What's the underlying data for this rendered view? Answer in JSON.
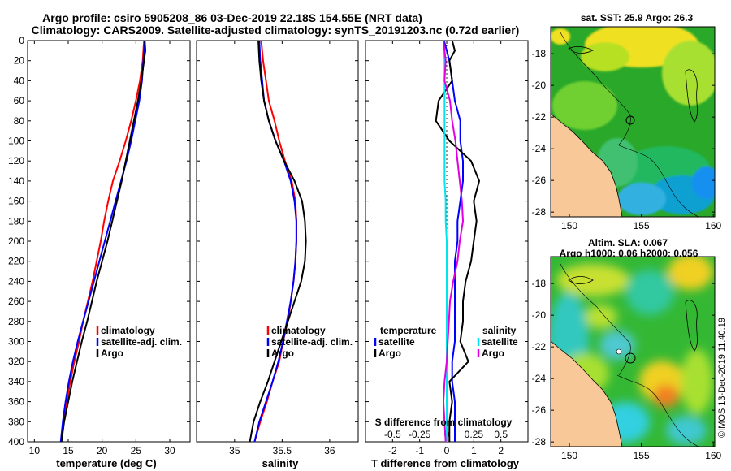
{
  "header": {
    "title_line1": "Argo profile: csiro 5905208_86 03-Dec-2019 22.18S 154.55E (NRT data)",
    "title_line2": "Climatology: CARS2009. Satellite-adjusted climatology: synTS_20191203.nc (0.72d earlier)"
  },
  "colors": {
    "climatology": "#ff0000",
    "satellite": "#0000ff",
    "argo": "#000000",
    "salinity_satellite": "#00e5f0",
    "salinity_argo": "#e000e0",
    "land": "#f8c898"
  },
  "chart_data": [
    {
      "type": "line",
      "id": "temperature-profile",
      "xlabel": "temperature (deg C)",
      "ylabel": "",
      "xlim": [
        9,
        33
      ],
      "ylim": [
        400,
        0
      ],
      "xticks": [
        "10",
        "15",
        "20",
        "25",
        "30"
      ],
      "yticks": [
        "0",
        "20",
        "40",
        "60",
        "80",
        "100",
        "120",
        "140",
        "160",
        "180",
        "200",
        "220",
        "240",
        "260",
        "280",
        "300",
        "320",
        "340",
        "360",
        "380",
        "400"
      ],
      "legend": [
        "climatology",
        "satellite-adj. clim.",
        "Argo"
      ],
      "legend_position": "lower-right",
      "series": [
        {
          "name": "climatology",
          "depth": [
            0,
            20,
            40,
            60,
            80,
            100,
            120,
            140,
            160,
            180,
            200,
            220,
            240,
            260,
            280,
            300,
            320,
            340,
            360,
            380,
            400
          ],
          "values": [
            26.2,
            26.0,
            25.6,
            25.0,
            24.3,
            23.5,
            22.6,
            21.6,
            20.9,
            20.3,
            19.8,
            19.2,
            18.6,
            17.9,
            17.2,
            16.6,
            15.9,
            15.3,
            14.8,
            14.3,
            13.9
          ]
        },
        {
          "name": "satellite-adj. clim.",
          "depth": [
            0,
            20,
            40,
            60,
            80,
            100,
            120,
            140,
            160,
            180,
            200,
            220,
            240,
            260,
            280,
            300,
            320,
            340,
            360,
            380,
            400
          ],
          "values": [
            26.3,
            26.1,
            25.9,
            25.5,
            24.9,
            24.3,
            23.6,
            22.8,
            22.0,
            21.2,
            20.4,
            19.6,
            18.8,
            18.0,
            17.2,
            16.4,
            15.7,
            15.1,
            14.6,
            14.2,
            13.9
          ]
        },
        {
          "name": "Argo",
          "depth": [
            0,
            10,
            20,
            40,
            60,
            80,
            100,
            120,
            140,
            160,
            180,
            200,
            220,
            240,
            260,
            280,
            300,
            320,
            340,
            360,
            380,
            400
          ],
          "values": [
            26.3,
            26.4,
            26.2,
            25.8,
            25.3,
            24.7,
            24.1,
            23.5,
            22.9,
            22.2,
            21.5,
            20.8,
            20.0,
            19.2,
            18.5,
            17.8,
            17.0,
            16.3,
            15.6,
            15.0,
            14.4,
            14.0
          ]
        }
      ]
    },
    {
      "type": "line",
      "id": "salinity-profile",
      "xlabel": "salinity",
      "xlim": [
        34.6,
        36.3
      ],
      "ylim": [
        400,
        0
      ],
      "xticks": [
        "35",
        "35.5",
        "36"
      ],
      "legend": [
        "climatology",
        "satellite-adj. clim.",
        "Argo"
      ],
      "legend_position": "lower-right",
      "series": [
        {
          "name": "climatology",
          "depth": [
            0,
            20,
            40,
            60,
            80,
            100,
            120,
            140,
            160,
            180,
            200,
            220,
            240,
            260,
            280,
            300,
            320,
            340,
            360,
            380,
            400
          ],
          "values": [
            35.28,
            35.3,
            35.33,
            35.36,
            35.42,
            35.47,
            35.53,
            35.6,
            35.64,
            35.65,
            35.65,
            35.64,
            35.62,
            35.59,
            35.56,
            35.51,
            35.47,
            35.4,
            35.34,
            35.27,
            35.21
          ]
        },
        {
          "name": "satellite-adj. clim.",
          "depth": [
            0,
            20,
            40,
            60,
            80,
            100,
            120,
            140,
            160,
            180,
            200,
            220,
            240,
            260,
            280,
            300,
            320,
            340,
            360,
            380,
            400
          ],
          "values": [
            35.26,
            35.27,
            35.29,
            35.31,
            35.36,
            35.43,
            35.52,
            35.59,
            35.63,
            35.65,
            35.65,
            35.64,
            35.62,
            35.59,
            35.55,
            35.51,
            35.46,
            35.4,
            35.33,
            35.26,
            35.21
          ]
        },
        {
          "name": "Argo",
          "depth": [
            0,
            20,
            40,
            60,
            80,
            100,
            120,
            140,
            160,
            180,
            200,
            220,
            240,
            260,
            280,
            300,
            320,
            340,
            360,
            380,
            400
          ],
          "values": [
            35.25,
            35.26,
            35.28,
            35.31,
            35.36,
            35.43,
            35.52,
            35.63,
            35.71,
            35.74,
            35.75,
            35.74,
            35.7,
            35.63,
            35.56,
            35.49,
            35.42,
            35.35,
            35.27,
            35.2,
            35.16
          ]
        }
      ]
    },
    {
      "type": "line",
      "id": "difference-profile",
      "xlabel": "T difference from climatology",
      "top_axis_label": "S difference from climatology",
      "xlim": [
        -3,
        3
      ],
      "top_xlim": [
        -0.75,
        0.75
      ],
      "ylim": [
        400,
        0
      ],
      "xticks": [
        "-2",
        "-1",
        "0",
        "1",
        "2"
      ],
      "top_xticks": [
        "-0.5",
        "-0.25",
        "0",
        "0.25",
        "0.5"
      ],
      "legend_temperature_title": "temperature",
      "legend_salinity_title": "salinity",
      "legend": [
        "satellite",
        "Argo"
      ],
      "legend_position": "center",
      "series": [
        {
          "name": "T satellite",
          "axis": "T",
          "depth": [
            0,
            20,
            40,
            60,
            80,
            100,
            120,
            140,
            160,
            180,
            200,
            220,
            240,
            260,
            280,
            300,
            320,
            340,
            360,
            380,
            400
          ],
          "values": [
            -0.1,
            0.1,
            0.2,
            0.3,
            0.5,
            0.5,
            0.6,
            0.6,
            0.5,
            0.4,
            0.4,
            0.3,
            0.3,
            0.3,
            0.3,
            0.3,
            0.2,
            0.2,
            0.3,
            0.3,
            0.3
          ]
        },
        {
          "name": "T Argo",
          "axis": "T",
          "depth": [
            0,
            10,
            20,
            40,
            60,
            80,
            100,
            120,
            140,
            160,
            180,
            200,
            220,
            240,
            260,
            280,
            300,
            320,
            340,
            360,
            380,
            400
          ],
          "values": [
            0.2,
            0.3,
            0.1,
            0.2,
            -0.3,
            -0.4,
            0.1,
            0.9,
            1.2,
            1.0,
            1.1,
            1.0,
            0.9,
            0.7,
            0.6,
            0.6,
            0.5,
            0.8,
            0.1,
            0.2,
            0.1,
            0.1
          ]
        },
        {
          "name": "S satellite",
          "axis": "S",
          "depth": [
            0,
            20,
            40,
            60,
            80,
            100,
            120,
            140,
            160,
            180,
            200,
            220,
            240,
            260,
            280,
            300,
            320,
            340,
            360,
            380,
            400
          ],
          "values": [
            -0.03,
            -0.02,
            -0.02,
            -0.02,
            -0.02,
            -0.02,
            -0.02,
            -0.02,
            -0.01,
            -0.01,
            0.0,
            0.0,
            0.0,
            0.0,
            0.0,
            0.0,
            0.0,
            0.0,
            0.0,
            0.0,
            0.0
          ]
        },
        {
          "name": "S Argo",
          "axis": "S",
          "depth": [
            0,
            20,
            40,
            60,
            80,
            100,
            120,
            140,
            160,
            180,
            200,
            220,
            240,
            260,
            280,
            300,
            320,
            340,
            360,
            380,
            400
          ],
          "values": [
            -0.03,
            -0.01,
            -0.02,
            0.03,
            0.05,
            0.08,
            0.1,
            0.12,
            0.14,
            0.15,
            0.12,
            0.1,
            0.06,
            0.03,
            0.02,
            0.01,
            0.0,
            -0.02,
            -0.03,
            -0.02,
            -0.01
          ]
        }
      ]
    }
  ],
  "maps": {
    "sst": {
      "title": "sat. SST: 25.9 Argo: 26.3",
      "lat_ticks": [
        "-18",
        "-20",
        "-22",
        "-24",
        "-26",
        "-28"
      ],
      "lon_ticks": [
        "150",
        "155",
        "160"
      ]
    },
    "sla": {
      "title_line1": "Altim. SLA: 0.067",
      "title_line2": "Argo h1000: 0.06 h2000: 0.056",
      "lat_ticks": [
        "-18",
        "-20",
        "-22",
        "-24",
        "-26",
        "-28"
      ],
      "lon_ticks": [
        "150",
        "155",
        "160"
      ]
    },
    "credit": "©IMOS 13-Dec-2019 11:40:19"
  }
}
